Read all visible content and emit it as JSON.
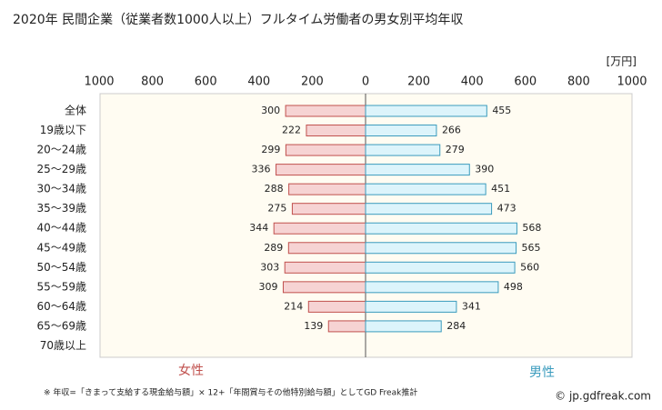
{
  "chart_data": {
    "type": "butterfly",
    "title": "2020年 民間企業（従業者数1000人以上）フルタイム労働者の男女別平均年収",
    "unit": "[万円]",
    "categories": [
      "全体",
      "19歳以下",
      "20〜24歳",
      "25〜29歳",
      "30〜34歳",
      "35〜39歳",
      "40〜44歳",
      "45〜49歳",
      "50〜54歳",
      "55〜59歳",
      "60〜64歳",
      "65〜69歳",
      "70歳以上"
    ],
    "series": [
      {
        "name": "女性",
        "color": "#f6d3d3",
        "stroke": "#c0504d",
        "side": "left",
        "values": [
          300,
          222,
          299,
          336,
          288,
          275,
          344,
          289,
          303,
          309,
          214,
          139,
          null
        ]
      },
      {
        "name": "男性",
        "color": "#dcf4fb",
        "stroke": "#3a9bbd",
        "side": "right",
        "values": [
          455,
          266,
          279,
          390,
          451,
          473,
          568,
          565,
          560,
          498,
          341,
          284,
          null
        ]
      }
    ],
    "xlim": [
      0,
      1000
    ],
    "xticks": [
      0,
      200,
      400,
      600,
      800,
      1000
    ],
    "grid": false,
    "footnote": "※ 年収=「きまって支給する現金給与額」× 12+「年間賞与その他特別給与額」としてGD Freak推計",
    "credit": "© jp.gdfreak.com"
  }
}
